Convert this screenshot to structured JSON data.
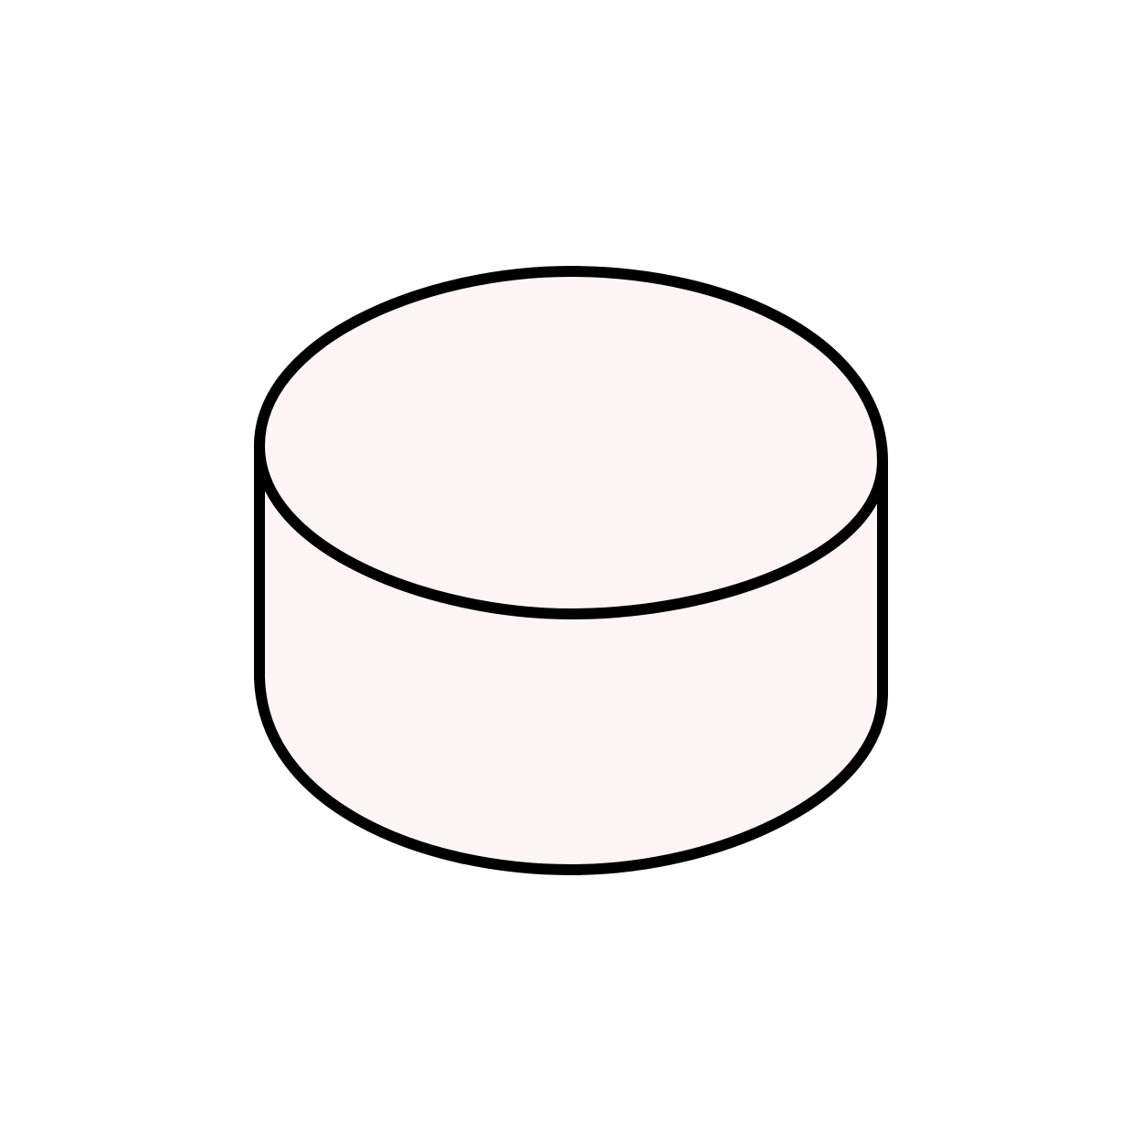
{
  "illustration": {
    "icon": "cylinder-icon",
    "fill_color": "#fdf5f5",
    "stroke_color": "#000000",
    "background_color": "#ffffff"
  }
}
